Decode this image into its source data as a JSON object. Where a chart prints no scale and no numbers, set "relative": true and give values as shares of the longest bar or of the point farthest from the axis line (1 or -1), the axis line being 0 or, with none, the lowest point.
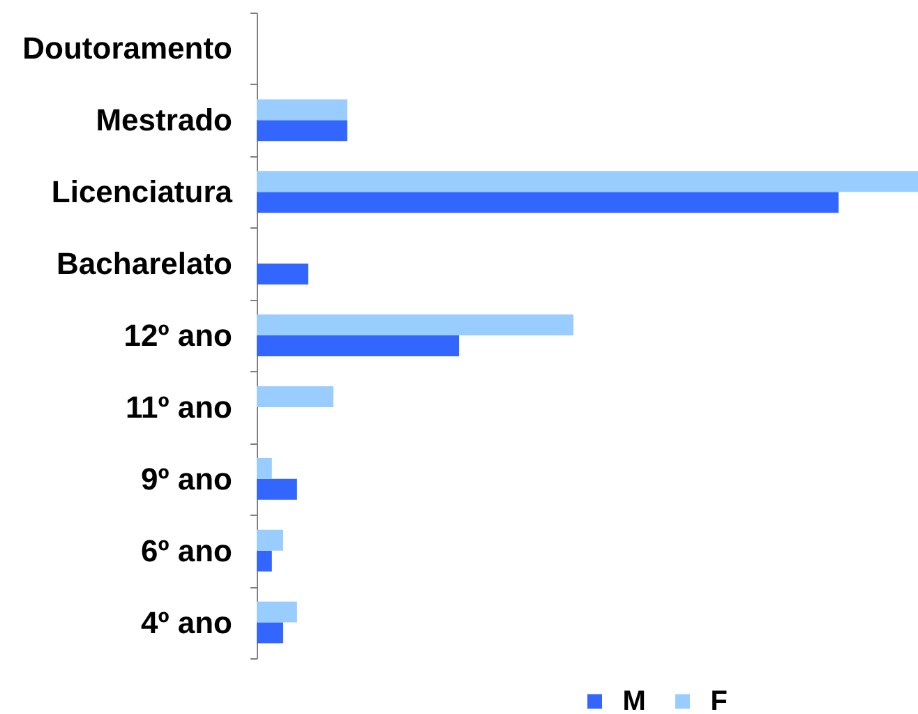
{
  "chart_data": {
    "type": "bar",
    "orientation": "horizontal",
    "relative": true,
    "legend": "bottom",
    "categories": [
      "Doutoramento",
      "Mestrado",
      "Licenciatura",
      "Bacharelato",
      "12º ano",
      "11º ano",
      "9º ano",
      "6º ano",
      "4º ano"
    ],
    "series": [
      {
        "name": "M",
        "color": "#3366ff",
        "values": [
          null,
          0.137,
          0.88,
          0.078,
          0.306,
          null,
          0.061,
          0.023,
          0.04
        ]
      },
      {
        "name": "F",
        "color": "#99ccff",
        "values": [
          null,
          0.137,
          1,
          null,
          0.479,
          0.116,
          0.023,
          0.04,
          0.061
        ]
      }
    ]
  }
}
